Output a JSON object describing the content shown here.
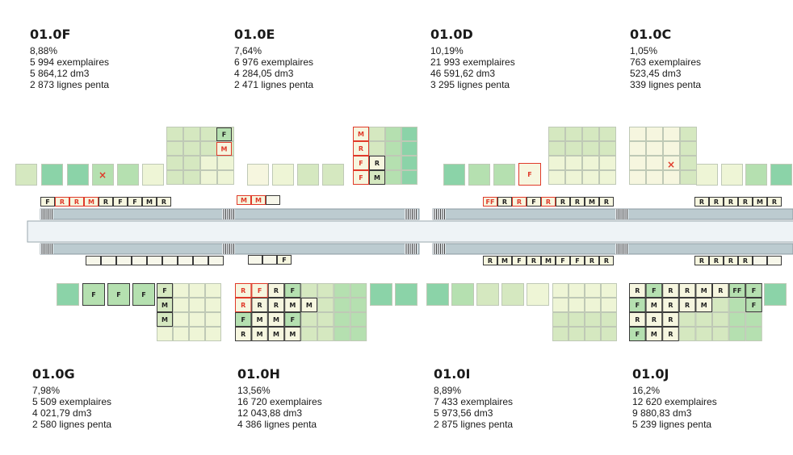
{
  "palette": {
    "light": "#eef5d6",
    "mid": "#d5e8c0",
    "green": "#b5e0b0",
    "dark": "#8bd3a8",
    "shelf": "#f6f6df",
    "shelf_border": "#3a3a3a",
    "red": "#e03a2a",
    "rack": "#bccbd0",
    "aisle": "#eef3f6"
  },
  "zones_top": [
    {
      "code": "01.0F",
      "pct": "8,88%",
      "copies": "5 994 exemplaires",
      "volume": "5 864,12 dm3",
      "lines": "2 873 lignes penta"
    },
    {
      "code": "01.0E",
      "pct": "7,64%",
      "copies": "6 976 exemplaires",
      "volume": "4 284,05 dm3",
      "lines": "2 471 lignes penta"
    },
    {
      "code": "01.0D",
      "pct": "10,19%",
      "copies": "21 993 exemplaires",
      "volume": "46 591,62 dm3",
      "lines": "3 295 lignes penta"
    },
    {
      "code": "01.0C",
      "pct": "1,05%",
      "copies": "763 exemplaires",
      "volume": "523,45 dm3",
      "lines": "339 lignes penta"
    }
  ],
  "zones_bottom": [
    {
      "code": "01.0G",
      "pct": "7,98%",
      "copies": "5 509 exemplaires",
      "volume": "4 021,79 dm3",
      "lines": "2 580 lignes penta"
    },
    {
      "code": "01.0H",
      "pct": "13,56%",
      "copies": "16 720 exemplaires",
      "volume": "12 043,88 dm3",
      "lines": "4 386 lignes penta"
    },
    {
      "code": "01.0I",
      "pct": "8,89%",
      "copies": "7 433 exemplaires",
      "volume": "5 973,56 dm3",
      "lines": "2 875 lignes penta"
    },
    {
      "code": "01.0J",
      "pct": "16,2%",
      "copies": "12 620 exemplaires",
      "volume": "9 880,83 dm3",
      "lines": "5 239 lignes penta"
    }
  ],
  "shelf_rows": {
    "top_f": {
      "labels": [
        "F",
        "R",
        "R",
        "M",
        "R",
        "F",
        "F",
        "M",
        "R"
      ],
      "red": [
        1,
        2,
        3
      ]
    },
    "top_e": {
      "labels": [
        "M",
        "M",
        ""
      ],
      "red": [
        0,
        1
      ]
    },
    "top_d": {
      "labels": [
        "FF",
        "R",
        "R",
        "F",
        "R",
        "R",
        "R",
        "M",
        "R"
      ],
      "red": [
        0,
        2,
        4
      ]
    },
    "top_c": {
      "labels": [
        "R",
        "R",
        "R",
        "R",
        "M",
        "R"
      ],
      "red": []
    },
    "bot_g": {
      "labels": [
        "",
        "",
        "",
        "",
        "",
        "",
        "",
        "",
        ""
      ],
      "red": []
    },
    "bot_h": {
      "labels": [
        "",
        "",
        "F"
      ],
      "red": []
    },
    "bot_i": {
      "labels": [
        "R",
        "M",
        "F",
        "R",
        "M",
        "F",
        "F",
        "R",
        "R"
      ],
      "red": []
    },
    "bot_j": {
      "labels": [
        "R",
        "R",
        "R",
        "R",
        "",
        ""
      ],
      "red": []
    }
  },
  "cell_labels": {
    "f_grid": [
      "F",
      "M"
    ],
    "e_grid": [
      "M",
      "R",
      "F",
      "F",
      "R",
      "M"
    ],
    "e_x": "×",
    "d_single": "F",
    "c_x": "×",
    "g_singles": [
      "F",
      "F",
      "F"
    ],
    "g_grid": [
      "F",
      "M",
      "M"
    ],
    "h_grid": [
      "R",
      "F",
      "R",
      "F",
      "R",
      "R",
      "R",
      "M",
      "M",
      "F",
      "M",
      "M",
      "F",
      "R",
      "M",
      "M",
      "M"
    ],
    "j_grid": [
      "R",
      "F",
      "R",
      "R",
      "M",
      "R",
      "FF",
      "F",
      "F",
      "M",
      "R",
      "R",
      "M",
      "F",
      "R",
      "R",
      "R",
      "F",
      "M",
      "R"
    ]
  }
}
